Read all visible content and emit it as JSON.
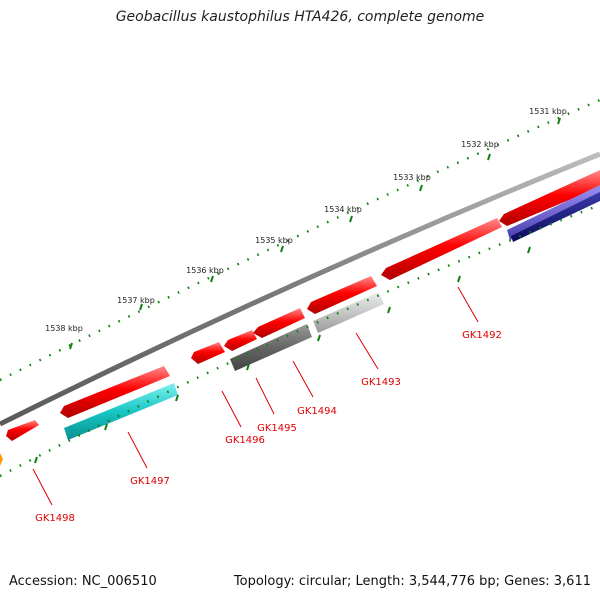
{
  "title": "Geobacillus kaustophilus HTA426, complete genome",
  "footer": {
    "accession": "Accession: NC_006510",
    "topology": "Topology: circular; Length: 3,544,776 bp; Genes: 3,611"
  },
  "ruler_labels": [
    "1531 kbp",
    "1532 kbp",
    "1533 kbp",
    "1534 kbp",
    "1535 kbp",
    "1536 kbp",
    "1537 kbp",
    "1538 kbp"
  ],
  "gene_labels": [
    "GK1492",
    "GK1493",
    "GK1494",
    "GK1495",
    "GK1496",
    "GK1497",
    "GK1498"
  ],
  "colors": {
    "backbone": "#8a8a8a",
    "forward_gene": "#ff0000",
    "label": "#e00000",
    "tick": "#108010",
    "cyan_gene": "#17c8c8",
    "dark_gray_gene": "#6a6a6a",
    "light_gray_gene": "#c4c4c4",
    "purple_gene": "#6655cc",
    "navy_gene": "#12126e",
    "orange_gene": "#ff9900"
  }
}
